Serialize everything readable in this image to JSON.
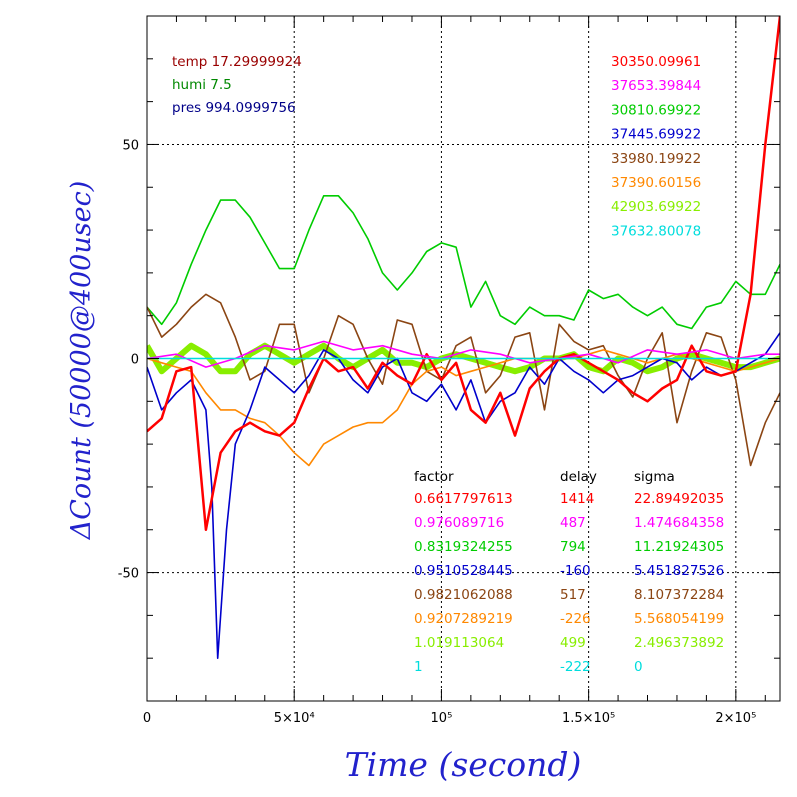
{
  "chart_data": {
    "type": "line",
    "title": "",
    "xlabel": "Time (second)",
    "ylabel": "ΔCount (50000@400usec)",
    "xlim": [
      0,
      215000
    ],
    "ylim": [
      -80,
      80
    ],
    "grid": true,
    "x_ticks": [
      {
        "value": 0,
        "label": "0"
      },
      {
        "value": 50000,
        "label": "5×10⁴"
      },
      {
        "value": 100000,
        "label": "10⁵"
      },
      {
        "value": 150000,
        "label": "1.5×10⁵"
      },
      {
        "value": 200000,
        "label": "2×10⁵"
      }
    ],
    "y_ticks": [
      {
        "value": 50,
        "label": "50"
      },
      {
        "value": 0,
        "label": "0"
      },
      {
        "value": -50,
        "label": "-50"
      }
    ],
    "conditions": [
      {
        "text": "temp 17.29999924",
        "color": "#990000"
      },
      {
        "text": "humi 7.5",
        "color": "#008800"
      },
      {
        "text": "pres 994.0999756",
        "color": "#000088"
      }
    ],
    "series": [
      {
        "color": "#ff0000",
        "base": "30350.09961",
        "factor": "0.6617797613",
        "delay": "1414",
        "sigma": "22.89492035",
        "x": [
          0,
          5000,
          10000,
          15000,
          20000,
          25000,
          30000,
          35000,
          40000,
          45000,
          50000,
          55000,
          60000,
          65000,
          70000,
          75000,
          80000,
          85000,
          90000,
          95000,
          100000,
          105000,
          110000,
          115000,
          120000,
          125000,
          130000,
          135000,
          140000,
          145000,
          150000,
          155000,
          160000,
          165000,
          170000,
          175000,
          180000,
          185000,
          190000,
          195000,
          200000,
          205000,
          210000,
          215000
        ],
        "y": [
          -17,
          -14,
          -3,
          -2,
          -40,
          -22,
          -17,
          -15,
          -17,
          -18,
          -15,
          -7,
          0,
          -3,
          -2,
          -7,
          -1,
          -4,
          -6,
          1,
          -5,
          -1,
          -12,
          -15,
          -8,
          -18,
          -7,
          -3,
          0,
          1,
          -1,
          -3,
          -5,
          -8,
          -10,
          -7,
          -5,
          3,
          -3,
          -4,
          -3,
          15,
          50,
          80
        ]
      },
      {
        "color": "#ff00ff",
        "base": "37653.39844",
        "factor": "0.976089716",
        "delay": "487",
        "sigma": "1.474684358",
        "x": [
          0,
          10000,
          20000,
          30000,
          40000,
          50000,
          60000,
          70000,
          80000,
          90000,
          100000,
          110000,
          120000,
          130000,
          140000,
          150000,
          160000,
          170000,
          180000,
          190000,
          200000,
          210000,
          215000
        ],
        "y": [
          0,
          1,
          -2,
          0,
          3,
          2,
          4,
          2,
          3,
          1,
          0,
          2,
          1,
          -1,
          0,
          1,
          -1,
          2,
          1,
          2,
          0,
          1,
          1
        ]
      },
      {
        "color": "#00cc00",
        "base": "30810.69922",
        "factor": "0.8319324255",
        "delay": "794",
        "sigma": "11.21924305",
        "x": [
          0,
          5000,
          10000,
          15000,
          20000,
          25000,
          30000,
          35000,
          40000,
          45000,
          50000,
          55000,
          60000,
          65000,
          70000,
          75000,
          80000,
          85000,
          90000,
          95000,
          100000,
          105000,
          110000,
          115000,
          120000,
          125000,
          130000,
          135000,
          140000,
          145000,
          150000,
          155000,
          160000,
          165000,
          170000,
          175000,
          180000,
          185000,
          190000,
          195000,
          200000,
          205000,
          210000,
          215000
        ],
        "y": [
          12,
          8,
          13,
          22,
          30,
          37,
          37,
          33,
          27,
          21,
          21,
          30,
          38,
          38,
          34,
          28,
          20,
          16,
          20,
          25,
          27,
          26,
          12,
          18,
          10,
          8,
          12,
          10,
          10,
          9,
          16,
          14,
          15,
          12,
          10,
          12,
          8,
          7,
          12,
          13,
          18,
          15,
          15,
          22
        ]
      },
      {
        "color": "#0000cc",
        "base": "37445.69922",
        "factor": "0.9510528445",
        "delay": "-160",
        "sigma": "5.451827526",
        "x": [
          0,
          5000,
          10000,
          15000,
          20000,
          22000,
          24000,
          27000,
          30000,
          35000,
          40000,
          45000,
          50000,
          55000,
          60000,
          65000,
          70000,
          75000,
          80000,
          85000,
          90000,
          95000,
          100000,
          105000,
          110000,
          115000,
          120000,
          125000,
          130000,
          135000,
          140000,
          145000,
          150000,
          155000,
          160000,
          165000,
          170000,
          175000,
          180000,
          185000,
          190000,
          195000,
          200000,
          205000,
          210000,
          215000
        ],
        "y": [
          -2,
          -12,
          -8,
          -5,
          -12,
          -30,
          -70,
          -40,
          -20,
          -12,
          -2,
          -5,
          -8,
          -4,
          2,
          0,
          -5,
          -8,
          -2,
          0,
          -8,
          -10,
          -6,
          -12,
          -5,
          -15,
          -10,
          -8,
          -2,
          -6,
          0,
          -3,
          -5,
          -8,
          -5,
          -4,
          -2,
          0,
          -1,
          -5,
          -2,
          -4,
          -3,
          -1,
          1,
          6
        ]
      },
      {
        "color": "#8b4513",
        "base": "33980.19922",
        "factor": "0.9821062088",
        "delay": "517",
        "sigma": "8.107372284",
        "x": [
          0,
          5000,
          10000,
          15000,
          20000,
          25000,
          30000,
          35000,
          40000,
          45000,
          50000,
          55000,
          60000,
          65000,
          70000,
          75000,
          80000,
          85000,
          90000,
          95000,
          100000,
          105000,
          110000,
          115000,
          120000,
          125000,
          130000,
          135000,
          140000,
          145000,
          150000,
          155000,
          160000,
          165000,
          170000,
          175000,
          180000,
          185000,
          190000,
          195000,
          200000,
          205000,
          210000,
          215000
        ],
        "y": [
          12,
          5,
          8,
          12,
          15,
          13,
          5,
          -5,
          -3,
          8,
          8,
          -8,
          0,
          10,
          8,
          0,
          -6,
          9,
          8,
          -3,
          -5,
          3,
          5,
          -8,
          -4,
          5,
          6,
          -12,
          8,
          4,
          2,
          3,
          -4,
          -9,
          0,
          6,
          -15,
          -3,
          6,
          5,
          -5,
          -25,
          -15,
          -8
        ]
      },
      {
        "color": "#ff8800",
        "base": "37390.60156",
        "factor": "0.9207289219",
        "delay": "-226",
        "sigma": "5.568054199",
        "x": [
          0,
          5000,
          10000,
          15000,
          20000,
          25000,
          30000,
          35000,
          40000,
          45000,
          50000,
          55000,
          60000,
          65000,
          70000,
          75000,
          80000,
          85000,
          90000,
          95000,
          100000,
          105000,
          110000,
          115000,
          120000,
          125000,
          130000,
          135000,
          140000,
          145000,
          150000,
          155000,
          160000,
          165000,
          170000,
          175000,
          180000,
          185000,
          190000,
          195000,
          200000,
          205000,
          210000,
          215000
        ],
        "y": [
          0,
          -1,
          -2,
          -3,
          -8,
          -12,
          -12,
          -14,
          -15,
          -18,
          -22,
          -25,
          -20,
          -18,
          -16,
          -15,
          -15,
          -12,
          -6,
          -3,
          -2,
          -4,
          -3,
          -2,
          -1,
          0,
          0,
          0,
          0,
          0,
          1,
          2,
          1,
          0,
          -1,
          0,
          1,
          0,
          -1,
          -2,
          -3,
          -2,
          -1,
          0
        ]
      },
      {
        "color": "#88ee00",
        "base": "42903.69922",
        "factor": "1.019113064",
        "delay": "499",
        "sigma": "2.496373892",
        "x": [
          0,
          5000,
          10000,
          15000,
          20000,
          25000,
          30000,
          35000,
          40000,
          45000,
          50000,
          55000,
          60000,
          65000,
          70000,
          75000,
          80000,
          85000,
          90000,
          95000,
          100000,
          105000,
          110000,
          115000,
          120000,
          125000,
          130000,
          135000,
          140000,
          145000,
          150000,
          155000,
          160000,
          165000,
          170000,
          175000,
          180000,
          185000,
          190000,
          195000,
          200000,
          205000,
          210000,
          215000
        ],
        "y": [
          3,
          -3,
          0,
          3,
          1,
          -3,
          -3,
          1,
          3,
          1,
          -1,
          1,
          3,
          0,
          -2,
          0,
          2,
          -1,
          -1,
          -2,
          0,
          1,
          0,
          -1,
          -2,
          -3,
          -2,
          0,
          0,
          1,
          -2,
          -3,
          0,
          -1,
          -3,
          -2,
          0,
          1,
          0,
          -1,
          -2,
          -2,
          -1,
          0
        ]
      },
      {
        "color": "#00dddd",
        "base": "37632.80078",
        "factor": "1",
        "delay": "-222",
        "sigma": "0",
        "x": [
          0,
          215000
        ],
        "y": [
          0,
          0
        ]
      }
    ],
    "table_header": {
      "factor": "factor",
      "delay": "delay",
      "sigma": "sigma"
    }
  }
}
